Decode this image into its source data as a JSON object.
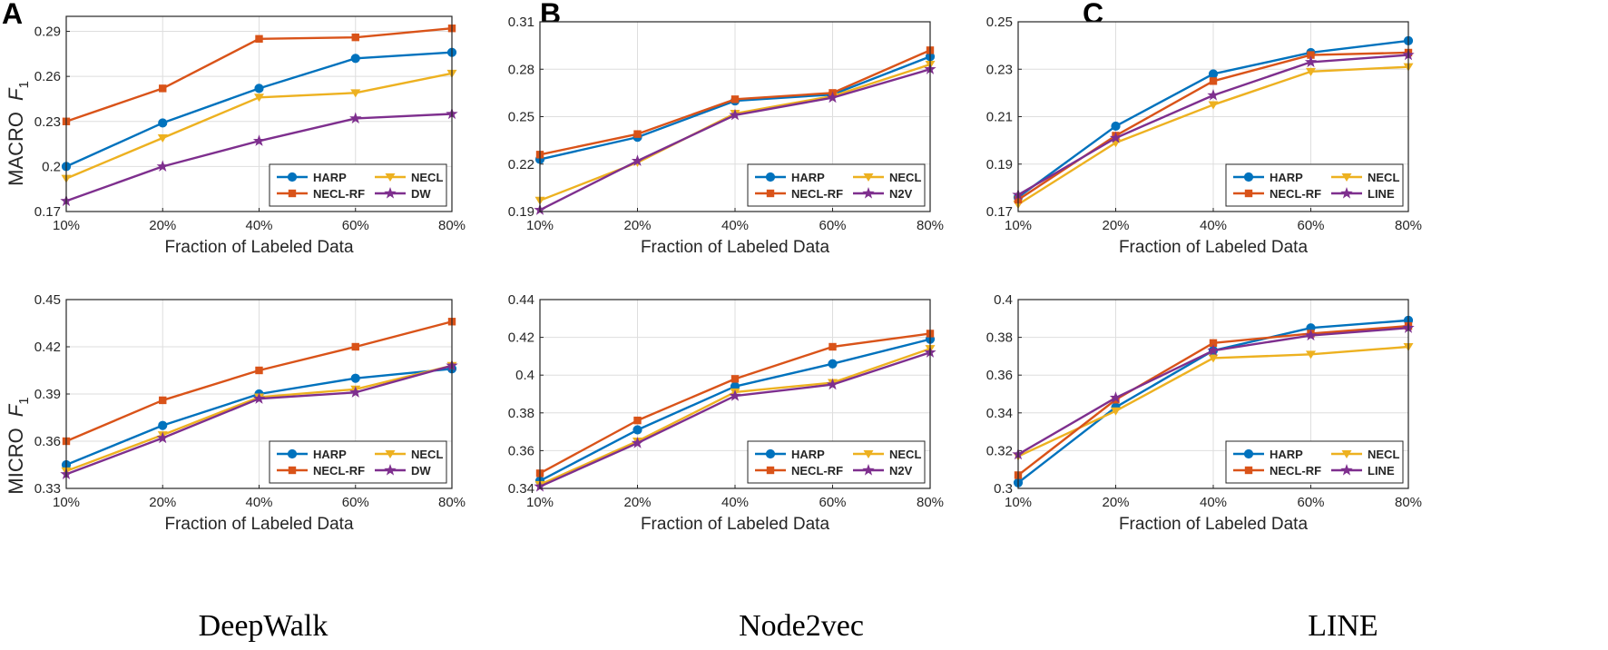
{
  "x_axis_label": "Fraction of Labeled Data",
  "row_labels": [
    {
      "main": "MACRO",
      "italic": "F",
      "sub": "1"
    },
    {
      "main": "MICRO",
      "italic": "F",
      "sub": "1"
    }
  ],
  "colors": {
    "HARP": "#0072BD",
    "NECL": "#EDB120",
    "NECL-RF": "#D95319",
    "EMB": "#7E2F8E"
  },
  "columns": [
    {
      "letter": "A",
      "caption": "DeepWalk"
    },
    {
      "letter": "B",
      "caption": "Node2vec"
    },
    {
      "letter": "C",
      "caption": "LINE"
    }
  ],
  "chart_data": [
    {
      "type": "line",
      "column": "A",
      "metric": "MACRO F1",
      "title": "",
      "xlabel": "Fraction of Labeled Data",
      "ylabel": "MACRO F1",
      "categories": [
        "10%",
        "20%",
        "40%",
        "60%",
        "80%"
      ],
      "ylim": [
        0.17,
        0.3
      ],
      "yticks": [
        "0.17",
        "0.2",
        "0.23",
        "0.26",
        "0.29"
      ],
      "yticks_values": [
        0.17,
        0.2,
        0.23,
        0.26,
        0.29
      ],
      "legend": "bottom-right",
      "series": [
        {
          "name": "HARP",
          "marker": "circle",
          "values": [
            0.2,
            0.229,
            0.252,
            0.272,
            0.276
          ]
        },
        {
          "name": "NECL",
          "marker": "triangle",
          "values": [
            0.192,
            0.219,
            0.246,
            0.249,
            0.262
          ]
        },
        {
          "name": "NECL-RF",
          "marker": "square",
          "values": [
            0.23,
            0.252,
            0.285,
            0.286,
            0.292
          ]
        },
        {
          "name": "DW",
          "marker": "star",
          "values": [
            0.177,
            0.2,
            0.217,
            0.232,
            0.235
          ]
        }
      ]
    },
    {
      "type": "line",
      "column": "B",
      "metric": "MACRO F1",
      "title": "",
      "xlabel": "Fraction of Labeled Data",
      "ylabel": "",
      "categories": [
        "10%",
        "20%",
        "40%",
        "60%",
        "80%"
      ],
      "ylim": [
        0.19,
        0.31
      ],
      "yticks": [
        "0.19",
        "0.22",
        "0.25",
        "0.28",
        "0.31"
      ],
      "yticks_values": [
        0.19,
        0.22,
        0.25,
        0.28,
        0.31
      ],
      "legend": "bottom-right",
      "series": [
        {
          "name": "HARP",
          "marker": "circle",
          "values": [
            0.223,
            0.237,
            0.26,
            0.264,
            0.288
          ]
        },
        {
          "name": "NECL",
          "marker": "triangle",
          "values": [
            0.197,
            0.221,
            0.252,
            0.263,
            0.283
          ]
        },
        {
          "name": "NECL-RF",
          "marker": "square",
          "values": [
            0.226,
            0.239,
            0.261,
            0.265,
            0.292
          ]
        },
        {
          "name": "N2V",
          "marker": "star",
          "values": [
            0.191,
            0.222,
            0.251,
            0.262,
            0.28
          ]
        }
      ]
    },
    {
      "type": "line",
      "column": "C",
      "metric": "MACRO F1",
      "title": "",
      "xlabel": "Fraction of Labeled Data",
      "ylabel": "",
      "categories": [
        "10%",
        "20%",
        "40%",
        "60%",
        "80%"
      ],
      "ylim": [
        0.17,
        0.25
      ],
      "yticks": [
        "0.17",
        "0.19",
        "0.21",
        "0.23",
        "0.25"
      ],
      "yticks_values": [
        0.17,
        0.19,
        0.21,
        0.23,
        0.25
      ],
      "legend": "bottom-right",
      "series": [
        {
          "name": "HARP",
          "marker": "circle",
          "values": [
            0.176,
            0.206,
            0.228,
            0.237,
            0.242
          ]
        },
        {
          "name": "NECL",
          "marker": "triangle",
          "values": [
            0.173,
            0.199,
            0.215,
            0.229,
            0.231
          ]
        },
        {
          "name": "NECL-RF",
          "marker": "square",
          "values": [
            0.175,
            0.202,
            0.225,
            0.236,
            0.237
          ]
        },
        {
          "name": "LINE",
          "marker": "star",
          "values": [
            0.177,
            0.201,
            0.219,
            0.233,
            0.236
          ]
        }
      ]
    },
    {
      "type": "line",
      "column": "A",
      "metric": "MICRO F1",
      "title": "",
      "xlabel": "Fraction of Labeled Data",
      "ylabel": "MICRO F1",
      "categories": [
        "10%",
        "20%",
        "40%",
        "60%",
        "80%"
      ],
      "ylim": [
        0.33,
        0.45
      ],
      "yticks": [
        "0.33",
        "0.36",
        "0.39",
        "0.42",
        "0.45"
      ],
      "yticks_values": [
        0.33,
        0.36,
        0.39,
        0.42,
        0.45
      ],
      "legend": "bottom-right",
      "series": [
        {
          "name": "HARP",
          "marker": "circle",
          "values": [
            0.345,
            0.37,
            0.39,
            0.4,
            0.406
          ]
        },
        {
          "name": "NECL",
          "marker": "triangle",
          "values": [
            0.341,
            0.364,
            0.388,
            0.393,
            0.408
          ]
        },
        {
          "name": "NECL-RF",
          "marker": "square",
          "values": [
            0.36,
            0.386,
            0.405,
            0.42,
            0.436
          ]
        },
        {
          "name": "DW",
          "marker": "star",
          "values": [
            0.339,
            0.362,
            0.387,
            0.391,
            0.408
          ]
        }
      ]
    },
    {
      "type": "line",
      "column": "B",
      "metric": "MICRO F1",
      "title": "",
      "xlabel": "Fraction of Labeled Data",
      "ylabel": "",
      "categories": [
        "10%",
        "20%",
        "40%",
        "60%",
        "80%"
      ],
      "ylim": [
        0.34,
        0.44
      ],
      "yticks": [
        "0.34",
        "0.36",
        "0.38",
        "0.4",
        "0.42",
        "0.44"
      ],
      "yticks_values": [
        0.34,
        0.36,
        0.38,
        0.4,
        0.42,
        0.44
      ],
      "legend": "bottom-right",
      "series": [
        {
          "name": "HARP",
          "marker": "circle",
          "values": [
            0.344,
            0.371,
            0.394,
            0.406,
            0.419
          ]
        },
        {
          "name": "NECL",
          "marker": "triangle",
          "values": [
            0.342,
            0.365,
            0.391,
            0.396,
            0.414
          ]
        },
        {
          "name": "NECL-RF",
          "marker": "square",
          "values": [
            0.348,
            0.376,
            0.398,
            0.415,
            0.422
          ]
        },
        {
          "name": "N2V",
          "marker": "star",
          "values": [
            0.341,
            0.364,
            0.389,
            0.395,
            0.412
          ]
        }
      ]
    },
    {
      "type": "line",
      "column": "C",
      "metric": "MICRO F1",
      "title": "",
      "xlabel": "Fraction of Labeled Data",
      "ylabel": "",
      "categories": [
        "10%",
        "20%",
        "40%",
        "60%",
        "80%"
      ],
      "ylim": [
        0.3,
        0.4
      ],
      "yticks": [
        "0.3",
        "0.32",
        "0.34",
        "0.36",
        "0.38",
        "0.4"
      ],
      "yticks_values": [
        0.3,
        0.32,
        0.34,
        0.36,
        0.38,
        0.4
      ],
      "legend": "bottom-right",
      "series": [
        {
          "name": "HARP",
          "marker": "circle",
          "values": [
            0.303,
            0.343,
            0.373,
            0.385,
            0.389
          ]
        },
        {
          "name": "NECL",
          "marker": "triangle",
          "values": [
            0.317,
            0.341,
            0.369,
            0.371,
            0.375
          ]
        },
        {
          "name": "NECL-RF",
          "marker": "square",
          "values": [
            0.307,
            0.347,
            0.377,
            0.382,
            0.386
          ]
        },
        {
          "name": "LINE",
          "marker": "star",
          "values": [
            0.318,
            0.348,
            0.373,
            0.381,
            0.385
          ]
        }
      ]
    }
  ]
}
